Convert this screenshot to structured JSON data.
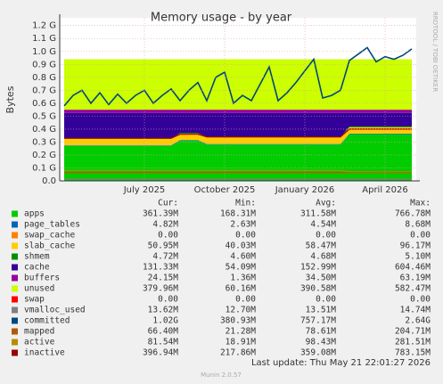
{
  "chart_data": {
    "type": "stacked_area",
    "title": "Memory usage - by year",
    "y_label": "Bytes",
    "side_text": "RRDTOOL / TOBI OETIKER",
    "last_update": "Last update: Thu May 21 22:01:27 2026",
    "footer": "Munin 2.0.57",
    "legend_headers": [
      "Cur:",
      "Min:",
      "Avg:",
      "Max:"
    ],
    "grid": true,
    "ylim": [
      0,
      1.26
    ],
    "yticks": [
      {
        "value": 0,
        "label": "0.0"
      },
      {
        "value": 0.1,
        "label": "0.1 G"
      },
      {
        "value": 0.2,
        "label": "0.2 G"
      },
      {
        "value": 0.3,
        "label": "0.3 G"
      },
      {
        "value": 0.4,
        "label": "0.4 G"
      },
      {
        "value": 0.5,
        "label": "0.5 G"
      },
      {
        "value": 0.6,
        "label": "0.6 G"
      },
      {
        "value": 0.7,
        "label": "0.7 G"
      },
      {
        "value": 0.8,
        "label": "0.8 G"
      },
      {
        "value": 0.9,
        "label": "0.9 G"
      },
      {
        "value": 1.0,
        "label": "1.0 G"
      },
      {
        "value": 1.1,
        "label": "1.1 G"
      },
      {
        "value": 1.2,
        "label": "1.2 G"
      }
    ],
    "categories": [
      null,
      null,
      null,
      null,
      null,
      null,
      null,
      null,
      null,
      "July 2025",
      null,
      null,
      null,
      null,
      null,
      null,
      null,
      null,
      "October 2025",
      null,
      null,
      null,
      null,
      null,
      null,
      null,
      null,
      "January 2026",
      null,
      null,
      null,
      null,
      null,
      null,
      null,
      null,
      "April 2026",
      null,
      null,
      null
    ],
    "series": [
      {
        "name": "apps",
        "color": "#00cc00",
        "stack": true,
        "stats": [
          "361.39M",
          "168.31M",
          "311.58M",
          "766.78M"
        ],
        "values": [
          0.27,
          0.27,
          0.27,
          0.27,
          0.27,
          0.27,
          0.27,
          0.27,
          0.27,
          0.27,
          0.27,
          0.27,
          0.27,
          0.31,
          0.31,
          0.31,
          0.28,
          0.28,
          0.28,
          0.28,
          0.28,
          0.28,
          0.28,
          0.28,
          0.28,
          0.28,
          0.28,
          0.28,
          0.28,
          0.28,
          0.28,
          0.28,
          0.36,
          0.36,
          0.36,
          0.36,
          0.36,
          0.36,
          0.36,
          0.36
        ]
      },
      {
        "name": "page_tables",
        "color": "#0066b3",
        "stack": true,
        "stats": [
          "4.82M",
          "2.63M",
          "4.54M",
          "8.68M"
        ],
        "values": [
          0.005,
          0.005,
          0.005,
          0.005,
          0.005,
          0.005,
          0.005,
          0.005,
          0.005,
          0.005,
          0.005,
          0.005,
          0.005,
          0.005,
          0.005,
          0.005,
          0.005,
          0.005,
          0.005,
          0.005,
          0.005,
          0.005,
          0.005,
          0.005,
          0.005,
          0.005,
          0.005,
          0.005,
          0.005,
          0.005,
          0.005,
          0.005,
          0.005,
          0.005,
          0.005,
          0.005,
          0.005,
          0.005,
          0.005,
          0.005
        ]
      },
      {
        "name": "swap_cache",
        "color": "#ff8000",
        "stack": true,
        "stats": [
          "0.00",
          "0.00",
          "0.00",
          "0.00"
        ],
        "values": [
          0,
          0,
          0,
          0,
          0,
          0,
          0,
          0,
          0,
          0,
          0,
          0,
          0,
          0,
          0,
          0,
          0,
          0,
          0,
          0,
          0,
          0,
          0,
          0,
          0,
          0,
          0,
          0,
          0,
          0,
          0,
          0,
          0,
          0,
          0,
          0,
          0,
          0,
          0,
          0
        ]
      },
      {
        "name": "slab_cache",
        "color": "#ffcc00",
        "stack": true,
        "stats": [
          "50.95M",
          "40.03M",
          "58.47M",
          "96.17M"
        ],
        "values": [
          0.05,
          0.05,
          0.05,
          0.05,
          0.05,
          0.05,
          0.05,
          0.05,
          0.05,
          0.05,
          0.05,
          0.05,
          0.05,
          0.05,
          0.05,
          0.05,
          0.05,
          0.05,
          0.05,
          0.05,
          0.05,
          0.05,
          0.05,
          0.05,
          0.05,
          0.05,
          0.05,
          0.05,
          0.05,
          0.05,
          0.05,
          0.05,
          0.05,
          0.05,
          0.05,
          0.05,
          0.05,
          0.05,
          0.05,
          0.05
        ]
      },
      {
        "name": "shmem",
        "color": "#008f00",
        "stack": true,
        "stats": [
          "4.72M",
          "4.60M",
          "4.68M",
          "5.10M"
        ],
        "values": [
          0.005,
          0.005,
          0.005,
          0.005,
          0.005,
          0.005,
          0.005,
          0.005,
          0.005,
          0.005,
          0.005,
          0.005,
          0.005,
          0.005,
          0.005,
          0.005,
          0.005,
          0.005,
          0.005,
          0.005,
          0.005,
          0.005,
          0.005,
          0.005,
          0.005,
          0.005,
          0.005,
          0.005,
          0.005,
          0.005,
          0.005,
          0.005,
          0.005,
          0.005,
          0.005,
          0.005,
          0.005,
          0.005,
          0.005,
          0.005
        ]
      },
      {
        "name": "cache",
        "color": "#330099",
        "stack": true,
        "stats": [
          "131.33M",
          "54.09M",
          "152.99M",
          "604.46M"
        ],
        "values": [
          0.195,
          0.195,
          0.195,
          0.195,
          0.195,
          0.195,
          0.195,
          0.195,
          0.195,
          0.195,
          0.195,
          0.195,
          0.195,
          0.155,
          0.155,
          0.155,
          0.185,
          0.185,
          0.185,
          0.185,
          0.185,
          0.185,
          0.185,
          0.185,
          0.185,
          0.185,
          0.185,
          0.185,
          0.185,
          0.185,
          0.185,
          0.185,
          0.105,
          0.105,
          0.105,
          0.105,
          0.105,
          0.105,
          0.105,
          0.105
        ]
      },
      {
        "name": "buffers",
        "color": "#990099",
        "stack": true,
        "stats": [
          "24.15M",
          "1.36M",
          "34.50M",
          "63.19M"
        ],
        "values": [
          0.025,
          0.025,
          0.025,
          0.025,
          0.025,
          0.025,
          0.025,
          0.025,
          0.025,
          0.025,
          0.025,
          0.025,
          0.025,
          0.025,
          0.025,
          0.025,
          0.025,
          0.025,
          0.025,
          0.025,
          0.025,
          0.025,
          0.025,
          0.025,
          0.025,
          0.025,
          0.025,
          0.025,
          0.025,
          0.025,
          0.025,
          0.025,
          0.025,
          0.025,
          0.025,
          0.025,
          0.025,
          0.025,
          0.025,
          0.025
        ]
      },
      {
        "name": "unused",
        "color": "#ccff00",
        "stack": true,
        "stats": [
          "379.96M",
          "60.16M",
          "390.58M",
          "582.47M"
        ],
        "values": [
          0.39,
          0.39,
          0.39,
          0.39,
          0.39,
          0.39,
          0.39,
          0.39,
          0.39,
          0.39,
          0.39,
          0.39,
          0.39,
          0.39,
          0.39,
          0.39,
          0.39,
          0.39,
          0.39,
          0.39,
          0.39,
          0.39,
          0.39,
          0.39,
          0.39,
          0.39,
          0.39,
          0.39,
          0.39,
          0.39,
          0.39,
          0.39,
          0.39,
          0.39,
          0.39,
          0.39,
          0.39,
          0.39,
          0.39,
          0.39
        ]
      },
      {
        "name": "swap",
        "color": "#ff0000",
        "stack": true,
        "stats": [
          "0.00",
          "0.00",
          "0.00",
          "0.00"
        ],
        "values": [
          0,
          0,
          0,
          0,
          0,
          0,
          0,
          0,
          0,
          0,
          0,
          0,
          0,
          0,
          0,
          0,
          0,
          0,
          0,
          0,
          0,
          0,
          0,
          0,
          0,
          0,
          0,
          0,
          0,
          0,
          0,
          0,
          0,
          0,
          0,
          0,
          0,
          0,
          0,
          0
        ]
      },
      {
        "name": "vmalloc_used",
        "color": "#808080",
        "stack": false,
        "stats": [
          "13.62M",
          "12.70M",
          "13.51M",
          "14.74M"
        ],
        "values": [
          0.013,
          0.013,
          0.013,
          0.013,
          0.013,
          0.013,
          0.013,
          0.013,
          0.013,
          0.013,
          0.013,
          0.013,
          0.013,
          0.013,
          0.013,
          0.013,
          0.013,
          0.013,
          0.013,
          0.013,
          0.013,
          0.013,
          0.013,
          0.013,
          0.013,
          0.013,
          0.013,
          0.013,
          0.013,
          0.013,
          0.013,
          0.013,
          0.013,
          0.013,
          0.013,
          0.013,
          0.013,
          0.013,
          0.013,
          0.013
        ]
      },
      {
        "name": "committed",
        "color": "#00487d",
        "stack": false,
        "stats": [
          "1.02G",
          "380.93M",
          "757.17M",
          "2.64G"
        ],
        "values": [
          0.58,
          0.66,
          0.7,
          0.6,
          0.68,
          0.59,
          0.67,
          0.6,
          0.66,
          0.7,
          0.6,
          0.66,
          0.71,
          0.62,
          0.7,
          0.76,
          0.62,
          0.8,
          0.84,
          0.6,
          0.66,
          0.62,
          0.75,
          0.88,
          0.62,
          0.68,
          0.76,
          0.85,
          0.94,
          0.64,
          0.66,
          0.7,
          0.93,
          0.98,
          1.03,
          0.92,
          0.96,
          0.94,
          0.97,
          1.02
        ]
      },
      {
        "name": "mapped",
        "color": "#b35a00",
        "stack": false,
        "stats": [
          "66.40M",
          "21.28M",
          "78.61M",
          "204.71M"
        ],
        "values": [
          0.065,
          0.065,
          0.065,
          0.065,
          0.065,
          0.065,
          0.065,
          0.065,
          0.065,
          0.065,
          0.065,
          0.065,
          0.065,
          0.065,
          0.065,
          0.065,
          0.065,
          0.065,
          0.065,
          0.065,
          0.065,
          0.065,
          0.065,
          0.065,
          0.065,
          0.065,
          0.065,
          0.065,
          0.065,
          0.065,
          0.065,
          0.065,
          0.065,
          0.065,
          0.065,
          0.065,
          0.065,
          0.065,
          0.065,
          0.065
        ]
      },
      {
        "name": "active",
        "color": "#b38f00",
        "stack": false,
        "stats": [
          "81.54M",
          "18.91M",
          "98.43M",
          "281.51M"
        ],
        "values": [
          0.08,
          0.08,
          0.08,
          0.08,
          0.08,
          0.08,
          0.08,
          0.08,
          0.08,
          0.08,
          0.08,
          0.08,
          0.08,
          0.08,
          0.08,
          0.08,
          0.08,
          0.08,
          0.08,
          0.08,
          0.08,
          0.08,
          0.08,
          0.08,
          0.08,
          0.08,
          0.08,
          0.08,
          0.08,
          0.08,
          0.08,
          0.08,
          0.07,
          0.07,
          0.07,
          0.07,
          0.07,
          0.07,
          0.07,
          0.07
        ]
      },
      {
        "name": "inactive",
        "color": "#990000",
        "stack": false,
        "stats": [
          "396.94M",
          "217.86M",
          "359.08M",
          "783.15M"
        ],
        "values": [
          0.33,
          0.33,
          0.33,
          0.33,
          0.33,
          0.33,
          0.33,
          0.33,
          0.33,
          0.33,
          0.33,
          0.33,
          0.33,
          0.36,
          0.36,
          0.36,
          0.34,
          0.34,
          0.34,
          0.34,
          0.34,
          0.34,
          0.34,
          0.34,
          0.34,
          0.34,
          0.34,
          0.34,
          0.34,
          0.34,
          0.34,
          0.34,
          0.4,
          0.4,
          0.4,
          0.4,
          0.4,
          0.4,
          0.4,
          0.4
        ]
      }
    ]
  }
}
